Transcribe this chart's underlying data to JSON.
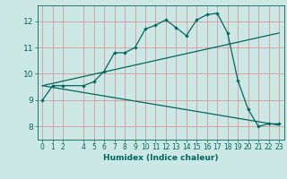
{
  "xlabel": "Humidex (Indice chaleur)",
  "background_color": "#cce8e4",
  "grid_color": "#dd8888",
  "line_color": "#006660",
  "xlim": [
    -0.5,
    23.5
  ],
  "ylim": [
    7.5,
    12.6
  ],
  "yticks": [
    8,
    9,
    10,
    11,
    12
  ],
  "xticks": [
    0,
    1,
    2,
    4,
    5,
    6,
    7,
    8,
    9,
    10,
    11,
    12,
    13,
    14,
    15,
    16,
    17,
    18,
    19,
    20,
    21,
    22,
    23
  ],
  "line1_x": [
    0,
    1,
    2,
    4,
    5,
    6,
    7,
    8,
    9,
    10,
    11,
    12,
    13,
    14,
    15,
    16,
    17,
    18,
    19,
    20,
    21,
    22,
    23
  ],
  "line1_y": [
    9.0,
    9.55,
    9.55,
    9.55,
    9.7,
    10.1,
    10.8,
    10.8,
    11.0,
    11.7,
    11.85,
    12.05,
    11.75,
    11.45,
    12.05,
    12.25,
    12.3,
    11.55,
    9.75,
    8.65,
    8.0,
    8.1,
    8.1
  ],
  "line2_x": [
    0,
    23
  ],
  "line2_y": [
    9.55,
    11.55
  ],
  "line3_x": [
    0,
    23
  ],
  "line3_y": [
    9.55,
    8.05
  ],
  "tick_fontsize": 5.5,
  "xlabel_fontsize": 6.5
}
